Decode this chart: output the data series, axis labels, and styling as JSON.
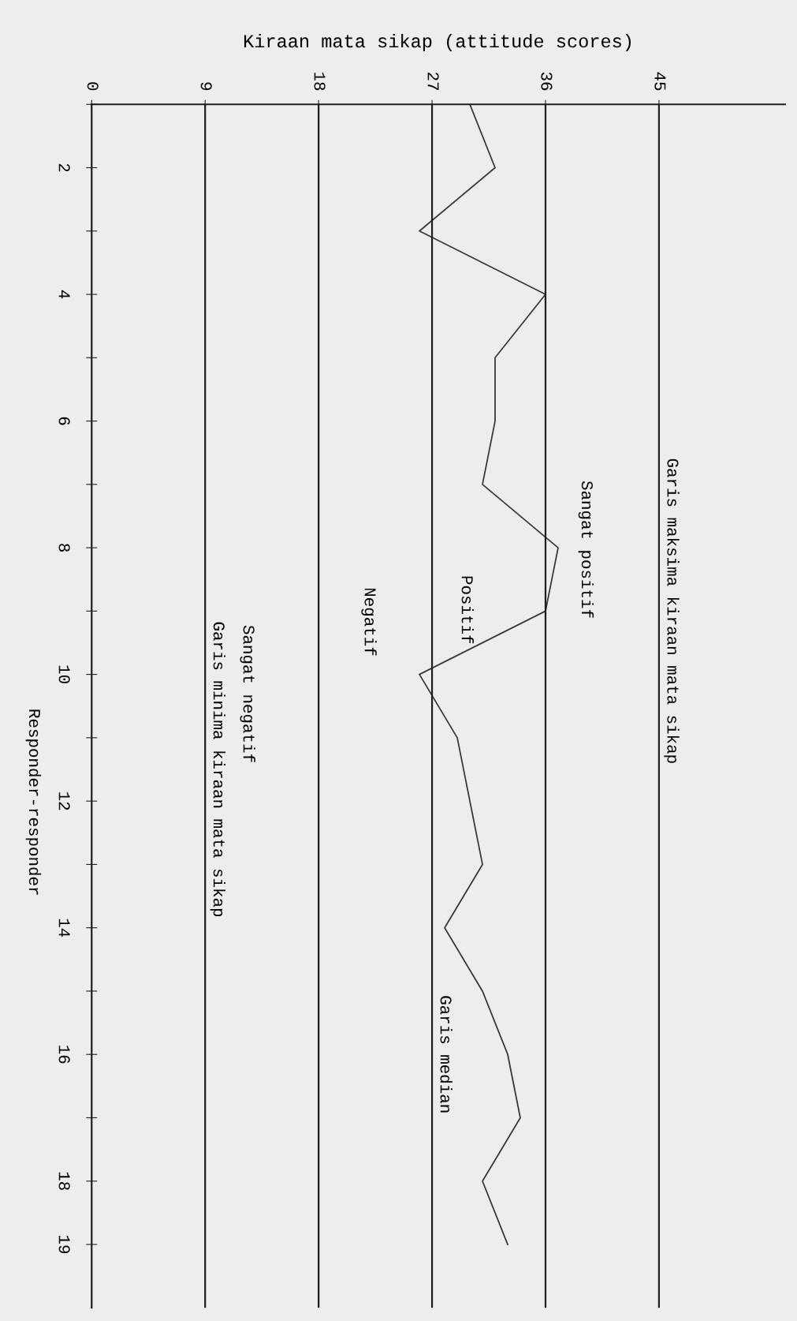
{
  "chart_data": {
    "type": "line",
    "orientation": "horizontal",
    "xlabel": "Kiraan mata sikap (attitude scores)",
    "ylabel": "Responder-responder",
    "x": [
      1,
      2,
      3,
      4,
      5,
      6,
      7,
      8,
      9,
      10,
      11,
      12,
      13,
      14,
      15,
      16,
      17,
      18,
      19
    ],
    "series": [
      {
        "color": "#3a3a3a",
        "values": [
          30,
          32,
          26,
          36,
          32,
          32,
          31,
          37,
          36,
          26,
          29,
          30,
          31,
          28,
          31,
          33,
          34,
          31,
          33
        ]
      }
    ],
    "xlim": [
      0,
      55
    ],
    "xticks": [
      0,
      9,
      18,
      27,
      36,
      45
    ],
    "ylim": [
      20,
      1
    ],
    "yticks": [
      {
        "value": 1,
        "label": null
      },
      2,
      {
        "value": 3,
        "label": null
      },
      4,
      {
        "value": 5,
        "label": null
      },
      6,
      {
        "value": 7,
        "label": null
      },
      8,
      {
        "value": 9,
        "label": null
      },
      10,
      {
        "value": 11,
        "label": null
      },
      12,
      {
        "value": 13,
        "label": null
      },
      14,
      {
        "value": 15,
        "label": null
      },
      16,
      {
        "value": 17,
        "label": null
      },
      18,
      19
    ],
    "ref_lines": [
      {
        "axis": "x",
        "value": 45,
        "label": "Garis maksima kiraan mata sikap",
        "color": "#1e1e1e"
      },
      {
        "axis": "x",
        "value": 36,
        "label": null,
        "color": "#1e1e1e"
      },
      {
        "axis": "x",
        "value": 27,
        "label": "Garis median",
        "color": "#1e1e1e"
      },
      {
        "axis": "x",
        "value": 18,
        "label": null,
        "color": "#1e1e1e"
      },
      {
        "axis": "x",
        "value": 9,
        "label": "Garis minima kiraan mata sikap",
        "color": "#1e1e1e"
      }
    ],
    "annotations": [
      "Sangat positif",
      "Positif",
      "Negatif",
      "Sangat negatif"
    ],
    "grid": false,
    "legend": false,
    "marker": "none",
    "line_style": "solid"
  }
}
